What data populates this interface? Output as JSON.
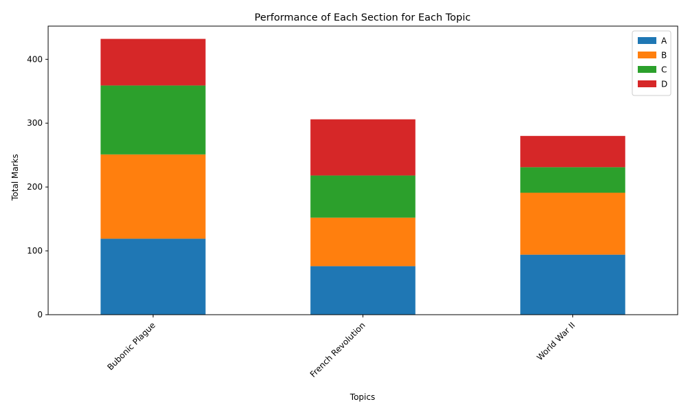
{
  "chart_data": {
    "type": "bar",
    "stacked": true,
    "title": "Performance of Each Section for Each Topic",
    "xlabel": "Topics",
    "ylabel": "Total Marks",
    "categories": [
      "Bubonic Plague",
      "French Revolution",
      "World War II"
    ],
    "ylim": [
      0,
      452
    ],
    "yticks": [
      0,
      100,
      200,
      300,
      400
    ],
    "grid": false,
    "legend_position": "top-right",
    "series": [
      {
        "name": "A",
        "color": "#1f77b4",
        "values": [
          119,
          76,
          94
        ]
      },
      {
        "name": "B",
        "color": "#ff7f0e",
        "values": [
          132,
          76,
          97
        ]
      },
      {
        "name": "C",
        "color": "#2ca02c",
        "values": [
          108,
          66,
          40
        ]
      },
      {
        "name": "D",
        "color": "#d62728",
        "values": [
          73,
          88,
          49
        ]
      }
    ]
  }
}
